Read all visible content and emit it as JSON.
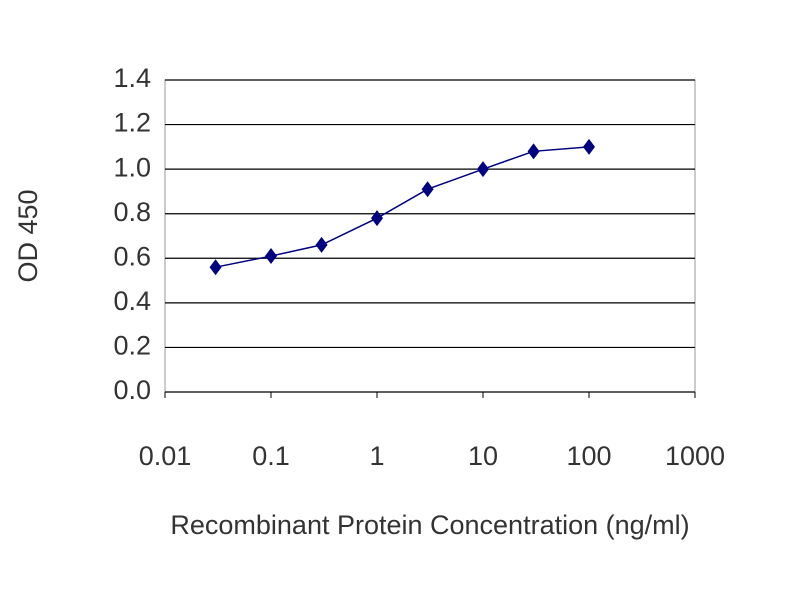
{
  "chart_data": {
    "type": "line",
    "xlabel": "Recombinant Protein Concentration (ng/ml)",
    "ylabel": "OD 450",
    "xscale": "log",
    "x": [
      0.03,
      0.1,
      0.3,
      1,
      3,
      10,
      30,
      100
    ],
    "series": [
      {
        "color": "#000080",
        "values": [
          0.56,
          0.61,
          0.66,
          0.78,
          0.91,
          1.0,
          1.08,
          1.1
        ]
      }
    ],
    "xlim": [
      0.01,
      1000
    ],
    "xticks": [
      0.01,
      0.1,
      1,
      10,
      100,
      1000
    ],
    "ylim": [
      0,
      1.4
    ],
    "yticks": [
      {
        "value": 0,
        "label": "0.0"
      },
      {
        "value": 0.2,
        "label": "0.2"
      },
      {
        "value": 0.4,
        "label": "0.4"
      },
      {
        "value": 0.6,
        "label": "0.6"
      },
      {
        "value": 0.8,
        "label": "0.8"
      },
      {
        "value": 1,
        "label": "1.0"
      },
      {
        "value": 1.2,
        "label": "1.2"
      },
      {
        "value": 1.4,
        "label": "1.4"
      }
    ],
    "grid": true
  }
}
